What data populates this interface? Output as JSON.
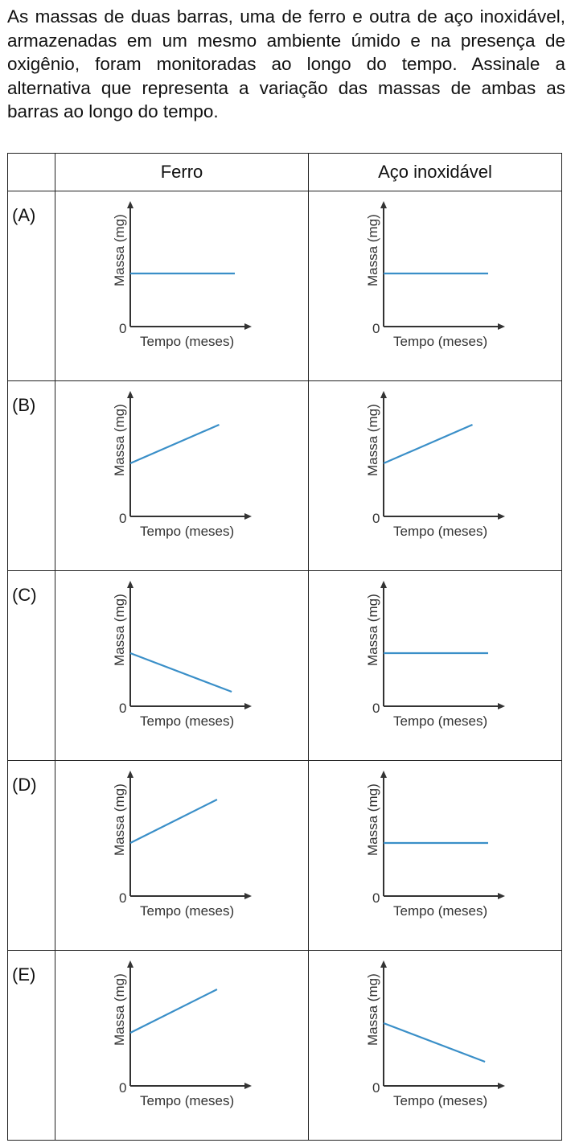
{
  "question": "As massas de duas barras, uma de ferro e outra de aço inoxidável, armazenadas em um mesmo ambiente úmido e na presença de oxigênio, foram monitoradas ao longo do tempo. Assinale a alternativa que representa a variação das massas de ambas as barras ao longo do tempo.",
  "table": {
    "headers": [
      "",
      "Ferro",
      "Aço inoxidável"
    ]
  },
  "axis_text": {
    "ylabel": "Massa (mg)",
    "xlabel": "Tempo (meses)",
    "origin": "0"
  },
  "colors": {
    "series": "#3a8fc8",
    "axis": "#333333"
  },
  "chart_data": [
    {
      "option": "(A)",
      "panel": "Ferro",
      "type": "line",
      "trend": "constant",
      "x": [
        0,
        1
      ],
      "y": [
        0.55,
        0.55
      ],
      "xlabel": "Tempo (meses)",
      "ylabel": "Massa (mg)"
    },
    {
      "option": "(A)",
      "panel": "Aço inoxidável",
      "type": "line",
      "trend": "constant",
      "x": [
        0,
        1
      ],
      "y": [
        0.55,
        0.55
      ],
      "xlabel": "Tempo (meses)",
      "ylabel": "Massa (mg)"
    },
    {
      "option": "(B)",
      "panel": "Ferro",
      "type": "line",
      "trend": "increasing",
      "x": [
        0,
        0.85
      ],
      "y": [
        0.55,
        0.95
      ],
      "xlabel": "Tempo (meses)",
      "ylabel": "Massa (mg)"
    },
    {
      "option": "(B)",
      "panel": "Aço inoxidável",
      "type": "line",
      "trend": "increasing",
      "x": [
        0,
        0.85
      ],
      "y": [
        0.55,
        0.95
      ],
      "xlabel": "Tempo (meses)",
      "ylabel": "Massa (mg)"
    },
    {
      "option": "(C)",
      "panel": "Ferro",
      "type": "line",
      "trend": "decreasing",
      "x": [
        0,
        0.97
      ],
      "y": [
        0.55,
        0.15
      ],
      "xlabel": "Tempo (meses)",
      "ylabel": "Massa (mg)"
    },
    {
      "option": "(C)",
      "panel": "Aço inoxidável",
      "type": "line",
      "trend": "constant",
      "x": [
        0,
        1
      ],
      "y": [
        0.55,
        0.55
      ],
      "xlabel": "Tempo (meses)",
      "ylabel": "Massa (mg)"
    },
    {
      "option": "(D)",
      "panel": "Ferro",
      "type": "line",
      "trend": "increasing",
      "x": [
        0,
        0.83
      ],
      "y": [
        0.55,
        1.0
      ],
      "xlabel": "Tempo (meses)",
      "ylabel": "Massa (mg)"
    },
    {
      "option": "(D)",
      "panel": "Aço inoxidável",
      "type": "line",
      "trend": "constant",
      "x": [
        0,
        1
      ],
      "y": [
        0.55,
        0.55
      ],
      "xlabel": "Tempo (meses)",
      "ylabel": "Massa (mg)"
    },
    {
      "option": "(E)",
      "panel": "Ferro",
      "type": "line",
      "trend": "increasing",
      "x": [
        0,
        0.83
      ],
      "y": [
        0.55,
        1.0
      ],
      "xlabel": "Tempo (meses)",
      "ylabel": "Massa (mg)"
    },
    {
      "option": "(E)",
      "panel": "Aço inoxidável",
      "type": "line",
      "trend": "decreasing",
      "x": [
        0,
        0.97
      ],
      "y": [
        0.65,
        0.25
      ],
      "xlabel": "Tempo (meses)",
      "ylabel": "Massa (mg)"
    }
  ]
}
